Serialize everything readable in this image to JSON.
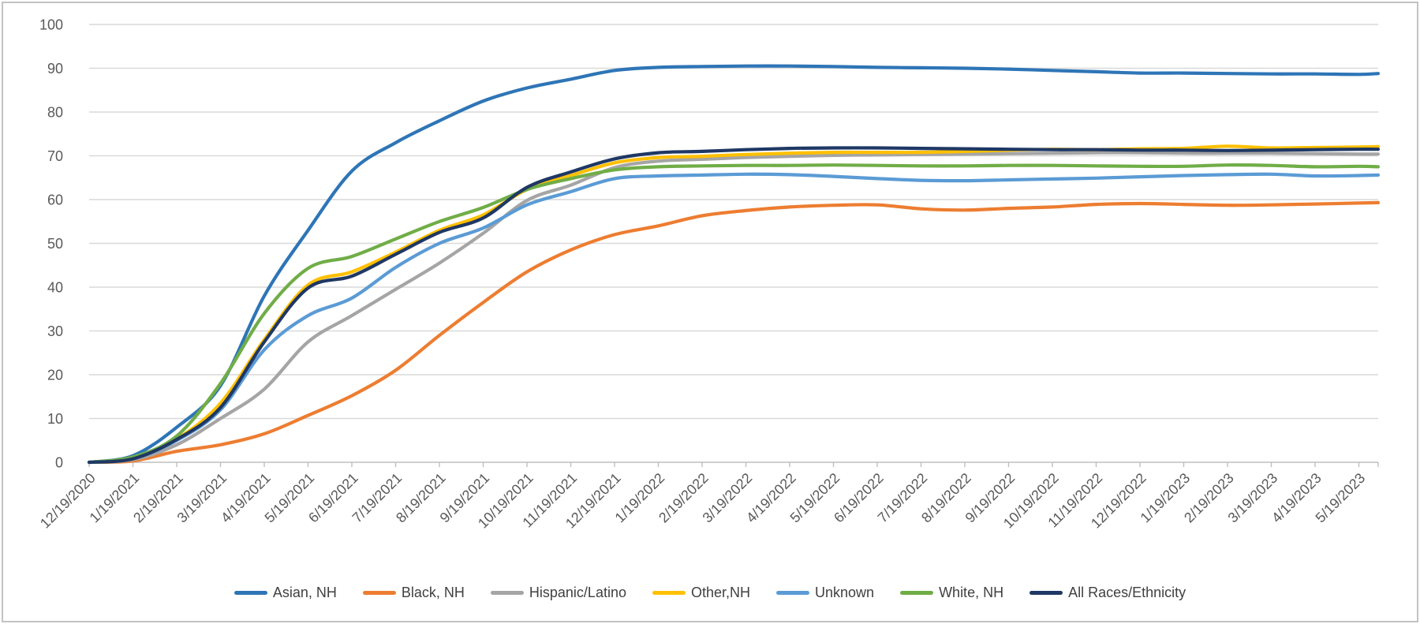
{
  "chart_data": {
    "type": "line",
    "title": "",
    "xlabel": "",
    "ylabel": "",
    "ylim": [
      0,
      100
    ],
    "y_tick_step": 10,
    "y_tick_labels": [
      "0",
      "10",
      "20",
      "30",
      "40",
      "50",
      "60",
      "70",
      "80",
      "90",
      "100"
    ],
    "grid": true,
    "legend_position": "bottom",
    "categories": [
      "12/19/2020",
      "1/19/2021",
      "2/19/2021",
      "3/19/2021",
      "4/19/2021",
      "5/19/2021",
      "6/19/2021",
      "7/19/2021",
      "8/19/2021",
      "9/19/2021",
      "10/19/2021",
      "11/19/2021",
      "12/19/2021",
      "1/19/2022",
      "2/19/2022",
      "3/19/2022",
      "4/19/2022",
      "5/19/2022",
      "6/19/2022",
      "7/19/2022",
      "8/19/2022",
      "9/19/2022",
      "10/19/2022",
      "11/19/2022",
      "12/19/2022",
      "1/19/2023",
      "2/19/2023",
      "3/19/2023",
      "4/19/2023",
      "5/19/2023"
    ],
    "series": [
      {
        "name": "Asian, NH",
        "color": "#2E75B6",
        "values": [
          0,
          1.5,
          8,
          17.5,
          38,
          53,
          66.5,
          73,
          78,
          82.5,
          85.5,
          87.5,
          89.5,
          90.2,
          90.4,
          90.5,
          90.5,
          90.4,
          90.2,
          90.1,
          90.0,
          89.8,
          89.5,
          89.2,
          88.9,
          88.9,
          88.8,
          88.7,
          88.7,
          88.6
        ],
        "tail_value": 88.8
      },
      {
        "name": "Black, NH",
        "color": "#ED7D31",
        "values": [
          0,
          0.3,
          2.5,
          4,
          6.5,
          10.7,
          15.2,
          21,
          29,
          36.5,
          43.5,
          48.5,
          52,
          54,
          56.3,
          57.5,
          58.3,
          58.7,
          58.8,
          57.9,
          57.6,
          58,
          58.3,
          58.9,
          59.1,
          58.9,
          58.7,
          58.8,
          59,
          59.2
        ],
        "tail_value": 59.3
      },
      {
        "name": "Hispanic/Latino",
        "color": "#A5A5A5",
        "values": [
          0,
          0.6,
          4,
          10,
          16.7,
          27.5,
          33.5,
          39.5,
          45.5,
          52.3,
          59.8,
          63.3,
          67.3,
          68.8,
          69.2,
          69.6,
          69.9,
          70.1,
          70.2,
          70.3,
          70.4,
          70.5,
          70.6,
          70.7,
          70.7,
          70.6,
          70.6,
          70.6,
          70.5,
          70.4
        ],
        "tail_value": 70.4
      },
      {
        "name": "Other,NH",
        "color": "#FFC000",
        "values": [
          0,
          0.8,
          5.3,
          13.5,
          28,
          40.5,
          43.5,
          48,
          53,
          56.5,
          62.3,
          65.5,
          68.4,
          69.6,
          69.9,
          70.3,
          70.6,
          70.8,
          70.8,
          70.8,
          71.0,
          71.3,
          71.5,
          71.4,
          71.6,
          71.7,
          72.2,
          71.8,
          71.9,
          72.0
        ],
        "tail_value": 72.1
      },
      {
        "name": "Unknown",
        "color": "#5B9BD5",
        "values": [
          0,
          0.8,
          5,
          12,
          25.7,
          33.5,
          37.5,
          44.5,
          50,
          53.5,
          58.8,
          61.8,
          64.8,
          65.4,
          65.6,
          65.8,
          65.7,
          65.3,
          64.8,
          64.4,
          64.3,
          64.5,
          64.7,
          64.9,
          65.2,
          65.5,
          65.7,
          65.8,
          65.4,
          65.5
        ],
        "tail_value": 65.6
      },
      {
        "name": "White, NH",
        "color": "#70AD47",
        "values": [
          0,
          1.2,
          6,
          18,
          34,
          44.3,
          47,
          51,
          55,
          58.2,
          62.3,
          64.8,
          66.8,
          67.5,
          67.7,
          67.8,
          67.8,
          67.9,
          67.8,
          67.7,
          67.7,
          67.8,
          67.8,
          67.7,
          67.6,
          67.6,
          67.9,
          67.8,
          67.5,
          67.6
        ],
        "tail_value": 67.5
      },
      {
        "name": "All Races/Ethnicity",
        "color": "#1F3864",
        "values": [
          0,
          0.8,
          5.2,
          12.5,
          27.5,
          39.8,
          42.5,
          47.5,
          52.5,
          55.8,
          62.8,
          66.3,
          69.3,
          70.7,
          71.0,
          71.4,
          71.7,
          71.8,
          71.8,
          71.7,
          71.6,
          71.5,
          71.4,
          71.4,
          71.3,
          71.3,
          71.2,
          71.3,
          71.4,
          71.5
        ],
        "tail_value": 71.5
      }
    ],
    "palette": {
      "gridline": "#d9d9d9",
      "axis_line": "#bfbfbf",
      "tick_label_color": "#595959",
      "legend_text_color": "#404040",
      "frame_border": "#c3c3c3",
      "background": "#ffffff"
    }
  }
}
